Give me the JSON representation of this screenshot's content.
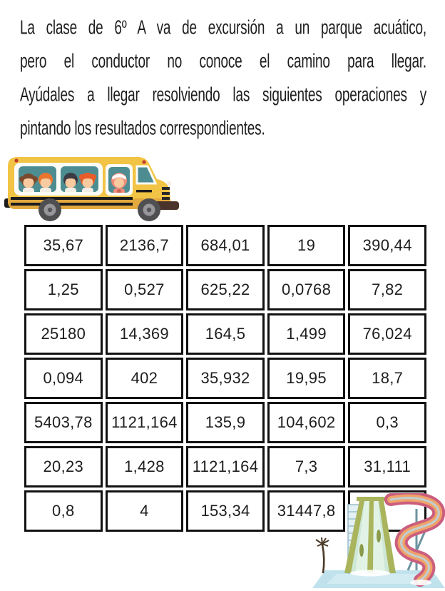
{
  "intro": {
    "lines": [
      "La clase de 6º A va de excursión a un parque acuático,",
      "pero el conductor no conoce el camino para llegar.",
      "Ayúdales a llegar resolviendo las siguientes operaciones y",
      "pintando los resultados correspondientes."
    ]
  },
  "grid": {
    "rows": [
      [
        "35,67",
        "2136,7",
        "684,01",
        "19",
        "390,44"
      ],
      [
        "1,25",
        "0,527",
        "625,22",
        "0,0768",
        "7,82"
      ],
      [
        "25180",
        "14,369",
        "164,5",
        "1,499",
        "76,024"
      ],
      [
        "0,094",
        "402",
        "35,932",
        "19,95",
        "18,7"
      ],
      [
        "5403,78",
        "1121,164",
        "135,9",
        "104,602",
        "0,3"
      ],
      [
        "20,23",
        "1,428",
        "1121,164",
        "7,3",
        "31,111"
      ],
      [
        "0,8",
        "4",
        "153,34",
        "31447,8",
        ""
      ]
    ]
  },
  "illustrations": {
    "school_bus": {
      "description": "yellow school bus full of children driving right",
      "body_color": "#f2c445",
      "window_color": "#4d8d92",
      "stripe_color": "#1d1d1d"
    },
    "water_slide": {
      "description": "water park slides with pool and palm tree",
      "flume_pink": "#cb5e7e",
      "flume_orange": "#f0a368",
      "slide_green": "#cfe7d6",
      "rail_olive": "#a9b45c",
      "pool_blue": "#bfe2ec"
    }
  },
  "colors": {
    "text": "#1e1e1e",
    "table_border": "#121212",
    "background": "#ffffff"
  }
}
